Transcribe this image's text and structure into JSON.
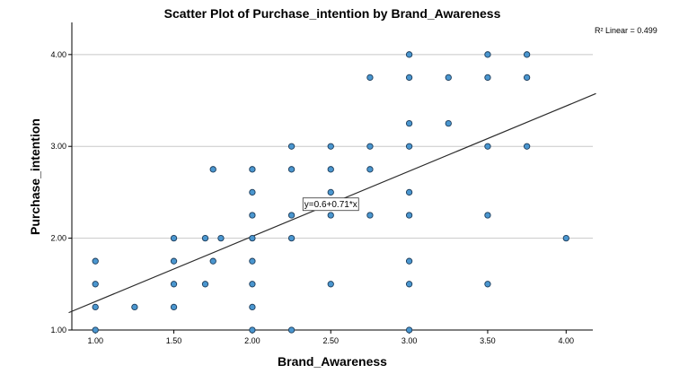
{
  "chart_data": {
    "type": "scatter",
    "title": "Scatter Plot of Purchase_intention by Brand_Awareness",
    "xlabel": "Brand_Awareness",
    "ylabel": "Purchase_intention",
    "xlim": [
      0.85,
      4.17
    ],
    "ylim": [
      1.0,
      4.35
    ],
    "x_ticks": [
      "1.00",
      "1.50",
      "2.00",
      "2.50",
      "3.00",
      "3.50",
      "4.00"
    ],
    "y_ticks": [
      "1.00",
      "2.00",
      "3.00",
      "4.00"
    ],
    "grid": "horizontal",
    "r2_label": "R² Linear = 0.499",
    "fit": {
      "intercept": 0.6,
      "slope": 0.71,
      "label": "y=0.6+0.71*x",
      "label_at": [
        2.5,
        2.37
      ]
    },
    "points": [
      [
        1.0,
        1.0
      ],
      [
        1.0,
        1.25
      ],
      [
        1.0,
        1.5
      ],
      [
        1.0,
        1.75
      ],
      [
        1.25,
        1.25
      ],
      [
        1.5,
        1.25
      ],
      [
        1.5,
        1.5
      ],
      [
        1.5,
        1.75
      ],
      [
        1.5,
        2.0
      ],
      [
        1.7,
        1.5
      ],
      [
        1.7,
        2.0
      ],
      [
        1.75,
        1.75
      ],
      [
        1.75,
        2.75
      ],
      [
        1.8,
        2.0
      ],
      [
        2.0,
        1.0
      ],
      [
        2.0,
        1.25
      ],
      [
        2.0,
        1.5
      ],
      [
        2.0,
        1.75
      ],
      [
        2.0,
        2.0
      ],
      [
        2.0,
        2.25
      ],
      [
        2.0,
        2.5
      ],
      [
        2.0,
        2.75
      ],
      [
        2.25,
        1.0
      ],
      [
        2.25,
        2.0
      ],
      [
        2.25,
        2.25
      ],
      [
        2.25,
        2.75
      ],
      [
        2.25,
        3.0
      ],
      [
        2.5,
        1.5
      ],
      [
        2.5,
        2.25
      ],
      [
        2.5,
        2.5
      ],
      [
        2.5,
        2.75
      ],
      [
        2.5,
        3.0
      ],
      [
        2.75,
        2.25
      ],
      [
        2.75,
        2.75
      ],
      [
        2.75,
        3.0
      ],
      [
        2.75,
        3.75
      ],
      [
        3.0,
        1.0
      ],
      [
        3.0,
        1.5
      ],
      [
        3.0,
        1.75
      ],
      [
        3.0,
        2.25
      ],
      [
        3.0,
        2.5
      ],
      [
        3.0,
        3.0
      ],
      [
        3.0,
        3.25
      ],
      [
        3.0,
        3.75
      ],
      [
        3.0,
        4.0
      ],
      [
        3.25,
        3.25
      ],
      [
        3.25,
        3.75
      ],
      [
        3.5,
        1.5
      ],
      [
        3.5,
        2.25
      ],
      [
        3.5,
        3.0
      ],
      [
        3.5,
        3.75
      ],
      [
        3.5,
        4.0
      ],
      [
        3.75,
        3.0
      ],
      [
        3.75,
        3.75
      ],
      [
        3.75,
        4.0
      ],
      [
        4.0,
        2.0
      ]
    ],
    "colors": {
      "point_fill": "#4a96cf",
      "point_stroke": "#1d3c5a",
      "line": "#2b2b2b",
      "grid": "#c8c8c8"
    }
  }
}
